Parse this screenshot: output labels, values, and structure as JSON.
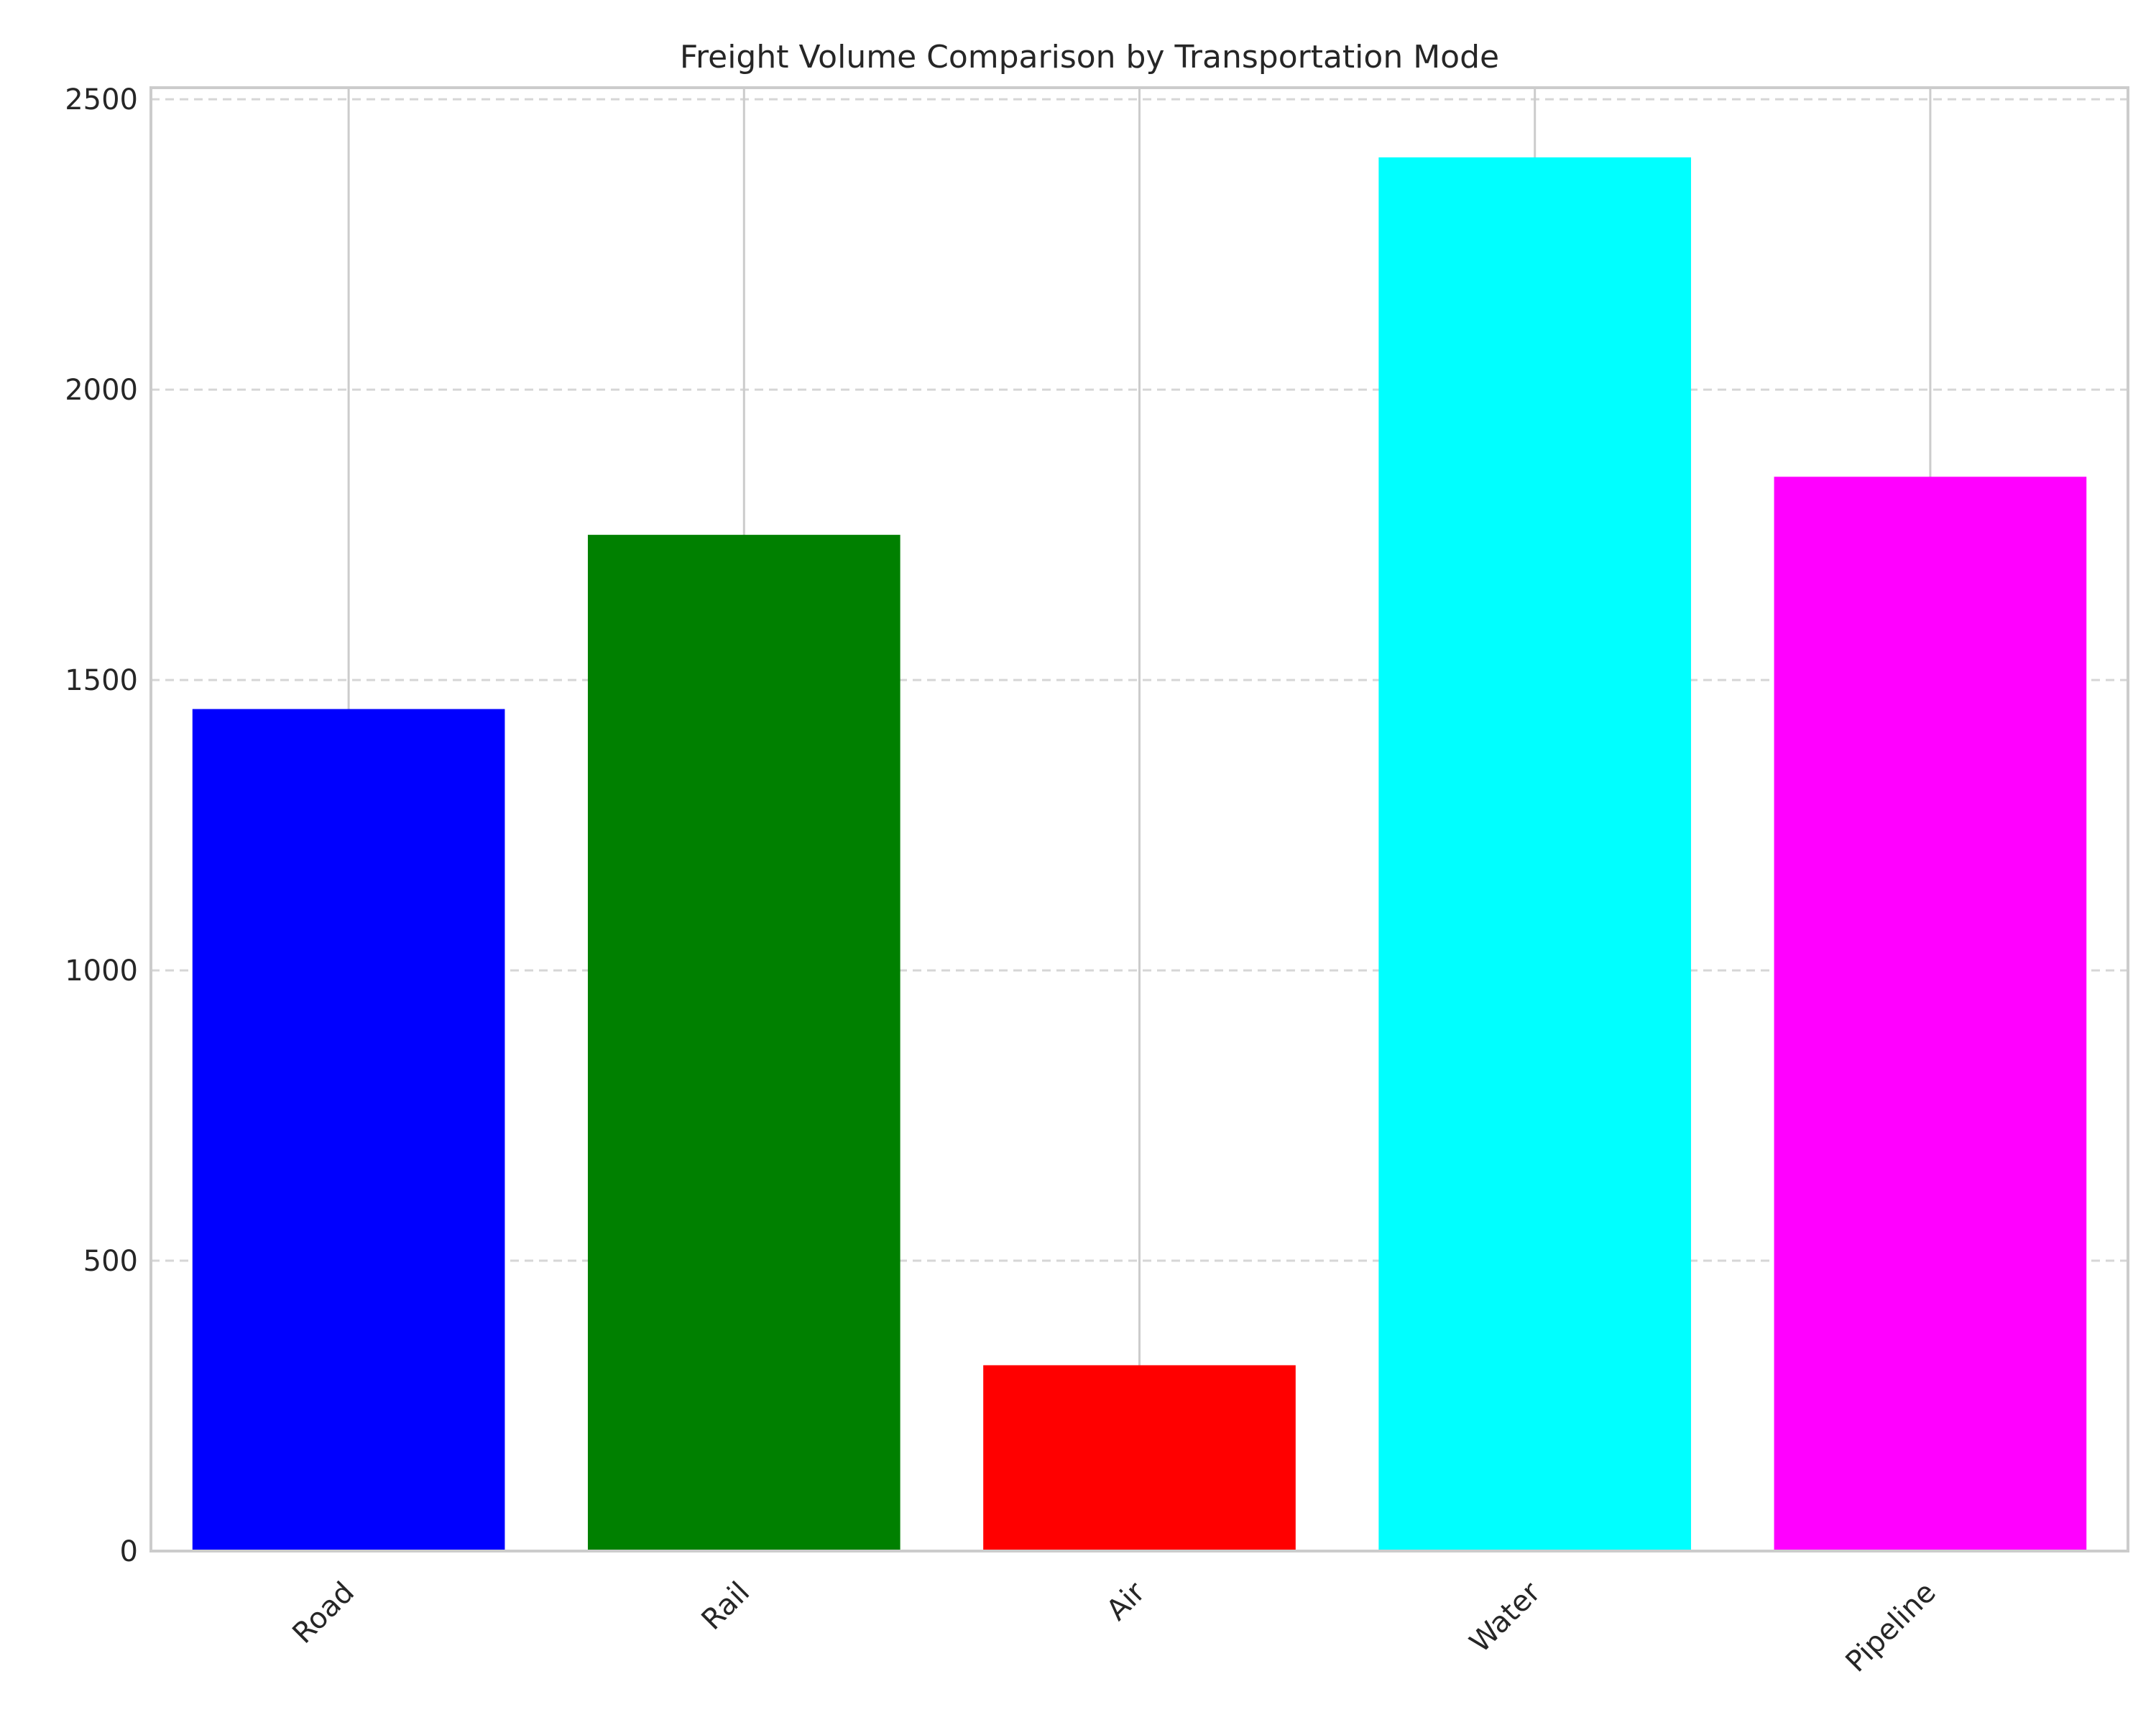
{
  "chart_data": {
    "type": "bar",
    "title": "Freight Volume Comparison by Transportation Mode",
    "xlabel": "",
    "ylabel": "",
    "categories": [
      "Road",
      "Rail",
      "Air",
      "Water",
      "Pipeline"
    ],
    "values": [
      1450,
      1750,
      320,
      2400,
      1850
    ],
    "colors": [
      "#0000ff",
      "#008000",
      "#ff0000",
      "#00ffff",
      "#ff00ff"
    ],
    "ylim": [
      0,
      2520
    ],
    "yticks": [
      0,
      500,
      1000,
      1500,
      2000,
      2500
    ],
    "grid": {
      "y": true,
      "y_style": "dashed",
      "x": true,
      "x_style": "solid"
    },
    "legend": "none"
  }
}
